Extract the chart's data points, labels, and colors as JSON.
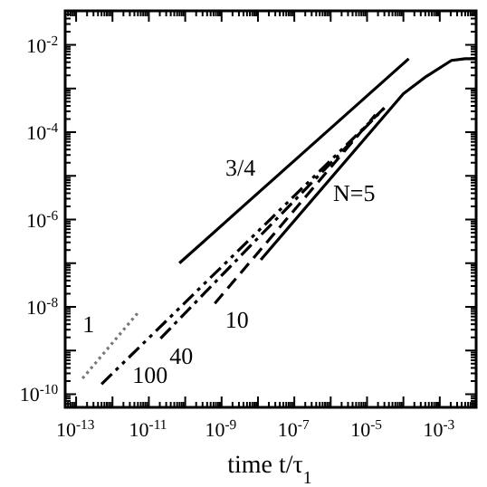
{
  "chart_data": {
    "type": "line",
    "xlabel": "time  t/τ$_{1}$",
    "log": "xy",
    "xlim": [
      5e-14,
      0.01
    ],
    "ylim": [
      5e-11,
      0.06
    ],
    "xticks": [
      {
        "value": 1e-13,
        "label": "10$^{-13}$"
      },
      {
        "value": 1e-12,
        "label": null
      },
      {
        "value": 1e-11,
        "label": "10$^{-11}$"
      },
      {
        "value": 1e-10,
        "label": null
      },
      {
        "value": 1e-09,
        "label": "10$^{-9}$"
      },
      {
        "value": 1e-08,
        "label": null
      },
      {
        "value": 1e-07,
        "label": "10$^{-7}$"
      },
      {
        "value": 1e-06,
        "label": null
      },
      {
        "value": 1e-05,
        "label": "10$^{-5}$"
      },
      {
        "value": 0.0001,
        "label": null
      },
      {
        "value": 0.001,
        "label": "10$^{-3}$"
      }
    ],
    "yticks": [
      {
        "value": 1e-10,
        "label": "10$^{-10}$"
      },
      {
        "value": 1e-09,
        "label": null
      },
      {
        "value": 1e-08,
        "label": "10$^{-8}$"
      },
      {
        "value": 1e-07,
        "label": null
      },
      {
        "value": 1e-06,
        "label": "10$^{-6}$"
      },
      {
        "value": 1e-05,
        "label": null
      },
      {
        "value": 0.0001,
        "label": "10$^{-4}$"
      },
      {
        "value": 0.001,
        "label": null
      },
      {
        "value": 0.01,
        "label": "10$^{-2}$"
      }
    ],
    "series": [
      {
        "name": "3/4",
        "color": "#000000",
        "line_style": "solid",
        "x": [
          6.9e-11,
          0.00014
        ],
        "values": [
          1e-07,
          0.0048
        ]
      },
      {
        "name": "N=5",
        "color": "#000000",
        "line_style": "solid",
        "x": [
          1.2e-08,
          0.0001,
          0.00043,
          0.0021,
          0.005,
          0.01
        ],
        "values": [
          1.2e-07,
          0.00076,
          0.0019,
          0.0044,
          0.0048,
          0.0048
        ]
      },
      {
        "name": "10",
        "color": "#000000",
        "line_style": "dashed",
        "x": [
          6.5e-10,
          1.7e-05
        ],
        "values": [
          1.2e-08,
          0.00025
        ]
      },
      {
        "name": "40",
        "color": "#000000",
        "line_style": "dashdot",
        "x": [
          2.1e-11,
          3e-05
        ],
        "values": [
          1.9e-09,
          0.00036
        ]
      },
      {
        "name": "100",
        "color": "#000000",
        "line_style": "dashdotdot",
        "x": [
          5e-13,
          3e-05
        ],
        "values": [
          1.7e-10,
          0.00036
        ]
      },
      {
        "name": "1",
        "color": "#777777",
        "line_style": "dotted",
        "x": [
          1.5e-13,
          5.2e-12
        ],
        "values": [
          2.3e-10,
          7.6e-09
        ]
      }
    ]
  }
}
